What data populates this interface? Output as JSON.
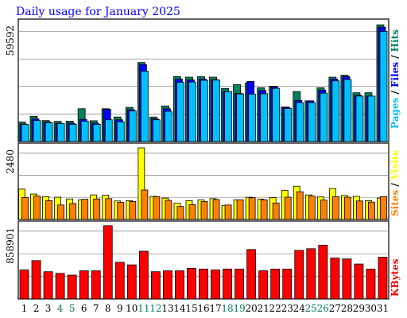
{
  "title": "Daily usage for January 2025",
  "colors": {
    "title": "#0000ff",
    "hits": "#00805c",
    "files": "#0000ff",
    "pages": "#00c0ff",
    "visits": "#ffff00",
    "sites": "#ff8000",
    "kbytes": "#ff0000",
    "weekend_day_label": "#00805c",
    "weekday_day_label": "#000000",
    "panel_border": "#000000",
    "gridline": "#808080"
  },
  "chart_data": [
    {
      "type": "bar",
      "panel": "hits-files-pages",
      "categories": [
        "1",
        "2",
        "3",
        "4",
        "5",
        "6",
        "7",
        "8",
        "9",
        "10",
        "11",
        "12",
        "13",
        "14",
        "15",
        "16",
        "17",
        "18",
        "19",
        "20",
        "21",
        "22",
        "23",
        "24",
        "25",
        "26",
        "27",
        "28",
        "29",
        "30",
        "31"
      ],
      "weekend_days": [
        "4",
        "5",
        "11",
        "12",
        "18",
        "19",
        "25",
        "26"
      ],
      "ymax_label": "59592",
      "ylim": [
        0,
        59592
      ],
      "legend": [
        "Pages",
        "/",
        "Files",
        "/",
        "Hits"
      ],
      "series": [
        {
          "name": "Hits",
          "values": [
            9900,
            12700,
            10600,
            10200,
            10300,
            16600,
            10500,
            16600,
            12400,
            17300,
            40000,
            12400,
            18000,
            32900,
            32600,
            32900,
            32600,
            26800,
            28800,
            29700,
            27200,
            28000,
            17500,
            25300,
            20600,
            27200,
            32600,
            33600,
            24700,
            24700,
            59100
          ]
        },
        {
          "name": "Files",
          "values": [
            8800,
            11400,
            9900,
            9200,
            9300,
            11200,
            9300,
            16300,
            11000,
            16100,
            39000,
            11400,
            16600,
            31600,
            31200,
            31600,
            31300,
            25300,
            24400,
            30400,
            25800,
            27700,
            17300,
            20800,
            20600,
            26000,
            31600,
            32900,
            23400,
            23000,
            57900
          ]
        },
        {
          "name": "Pages",
          "values": [
            8600,
            10600,
            9500,
            9100,
            8700,
            10300,
            8700,
            11000,
            10000,
            15500,
            35600,
            11000,
            15300,
            30000,
            30100,
            31000,
            31100,
            25300,
            24100,
            24000,
            24200,
            26900,
            16700,
            19700,
            19700,
            24500,
            30700,
            31400,
            23000,
            23000,
            55800
          ]
        }
      ]
    },
    {
      "type": "bar",
      "panel": "visits-sites",
      "categories": [
        "1",
        "2",
        "3",
        "4",
        "5",
        "6",
        "7",
        "8",
        "9",
        "10",
        "11",
        "12",
        "13",
        "14",
        "15",
        "16",
        "17",
        "18",
        "19",
        "20",
        "21",
        "22",
        "23",
        "24",
        "25",
        "26",
        "27",
        "28",
        "29",
        "30",
        "31"
      ],
      "ymax_label": "2480",
      "ylim": [
        0,
        2480
      ],
      "legend": [
        "Sites",
        "/",
        "Visits"
      ],
      "series": [
        {
          "name": "Visits",
          "values": [
            1050,
            880,
            790,
            770,
            710,
            680,
            850,
            840,
            640,
            650,
            2480,
            800,
            740,
            560,
            650,
            680,
            720,
            490,
            680,
            770,
            700,
            760,
            1010,
            1150,
            850,
            780,
            1070,
            830,
            800,
            650,
            740
          ]
        },
        {
          "name": "Sites",
          "values": [
            760,
            810,
            650,
            500,
            550,
            700,
            710,
            720,
            590,
            620,
            1020,
            790,
            660,
            450,
            510,
            620,
            690,
            500,
            680,
            750,
            680,
            570,
            770,
            960,
            810,
            670,
            790,
            770,
            640,
            600,
            790
          ]
        }
      ]
    },
    {
      "type": "bar",
      "panel": "kbytes",
      "categories": [
        "1",
        "2",
        "3",
        "4",
        "5",
        "6",
        "7",
        "8",
        "9",
        "10",
        "11",
        "12",
        "13",
        "14",
        "15",
        "16",
        "17",
        "18",
        "19",
        "20",
        "21",
        "22",
        "23",
        "24",
        "25",
        "26",
        "27",
        "28",
        "29",
        "30",
        "31"
      ],
      "ymax_label": "858901",
      "ylim": [
        0,
        858901
      ],
      "legend": [
        "KBytes"
      ],
      "series": [
        {
          "name": "KBytes",
          "values": [
            340000,
            450000,
            320000,
            300000,
            280000,
            330000,
            330000,
            860000,
            430000,
            400000,
            560000,
            320000,
            330000,
            330000,
            360000,
            350000,
            340000,
            350000,
            350000,
            580000,
            330000,
            350000,
            350000,
            570000,
            590000,
            630000,
            480000,
            470000,
            410000,
            350000,
            490000
          ]
        }
      ]
    }
  ]
}
